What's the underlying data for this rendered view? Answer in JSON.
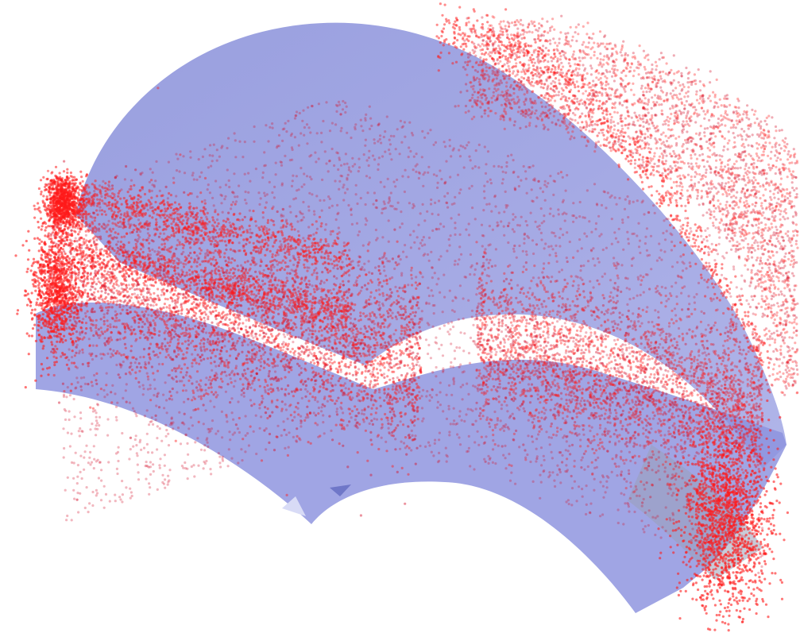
{
  "scene": {
    "kind": "3d-point-cloud-render",
    "surface": {
      "shape": "curved-saddle-band",
      "fill_color": "#8088d8",
      "fill_opacity": 0.72,
      "shade_color": "#7a80c0",
      "highlight_color": "#c9ccf0"
    },
    "points": {
      "color": "#ff1a1a",
      "dense_color": "#d4102a",
      "opacity": 0.45,
      "description_tag": "trajectory-point-cloud"
    },
    "background_color": "#ffffff"
  }
}
